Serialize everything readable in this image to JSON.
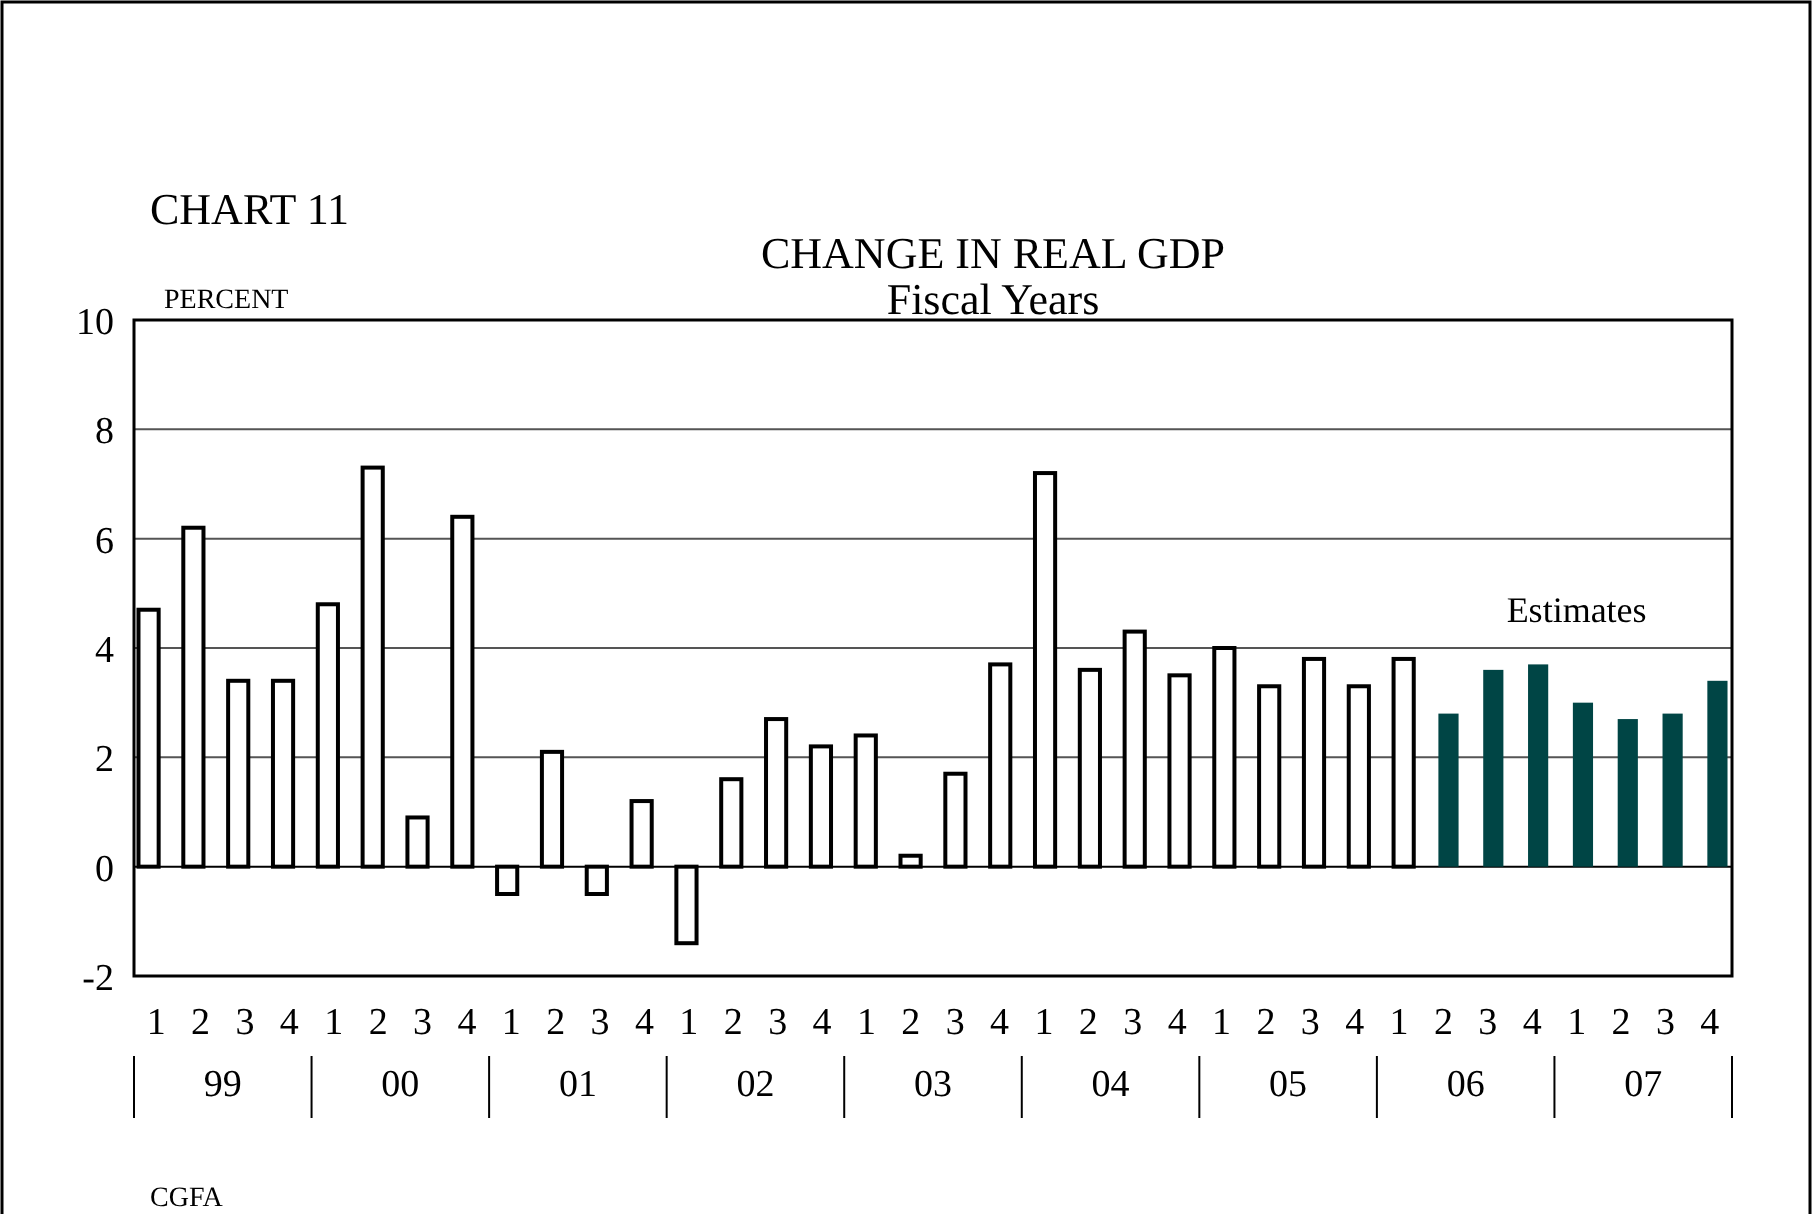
{
  "chart_data": {
    "type": "bar",
    "title": "CHANGE IN REAL GDP",
    "subtitle": "Fiscal Years",
    "ylabel": "PERCENT",
    "categories": [
      "1",
      "2",
      "3",
      "4",
      "1",
      "2",
      "3",
      "4",
      "1",
      "2",
      "3",
      "4",
      "1",
      "2",
      "3",
      "4",
      "1",
      "2",
      "3",
      "4",
      "1",
      "2",
      "3",
      "4",
      "1",
      "2",
      "3",
      "4",
      "1",
      "2",
      "3",
      "4",
      "1",
      "2",
      "3",
      "4"
    ],
    "values": [
      4.7,
      6.2,
      3.4,
      3.4,
      4.8,
      7.3,
      0.9,
      6.4,
      -0.5,
      2.1,
      -0.5,
      1.2,
      -1.4,
      1.6,
      2.7,
      2.2,
      2.4,
      0.2,
      1.7,
      3.7,
      7.2,
      3.6,
      4.3,
      3.5,
      4.0,
      3.3,
      3.8,
      3.3,
      3.8,
      2.8,
      3.6,
      3.7,
      3.0,
      2.7,
      2.8,
      3.4
    ],
    "colors": [
      "#ffffff",
      "#ffffff",
      "#ffffff",
      "#ffffff",
      "#ffffff",
      "#ffffff",
      "#ffffff",
      "#ffffff",
      "#ffffff",
      "#ffffff",
      "#ffffff",
      "#ffffff",
      "#ffffff",
      "#ffffff",
      "#ffffff",
      "#ffffff",
      "#ffffff",
      "#ffffff",
      "#ffffff",
      "#ffffff",
      "#ffffff",
      "#ffffff",
      "#ffffff",
      "#ffffff",
      "#ffffff",
      "#ffffff",
      "#ffffff",
      "#ffffff",
      "#ffffff",
      "#004545",
      "#004545",
      "#004545",
      "#004545",
      "#004545",
      "#004545",
      "#004545"
    ],
    "ylim": [
      -2,
      10
    ],
    "yticks": [
      -2,
      0,
      2,
      4,
      6,
      8,
      10
    ],
    "grid": "y",
    "annotations": [
      "99",
      "00",
      "01",
      "02",
      "03",
      "04",
      "05",
      "06",
      "07",
      "Estimates",
      "CHART 11",
      "CGFA"
    ]
  }
}
